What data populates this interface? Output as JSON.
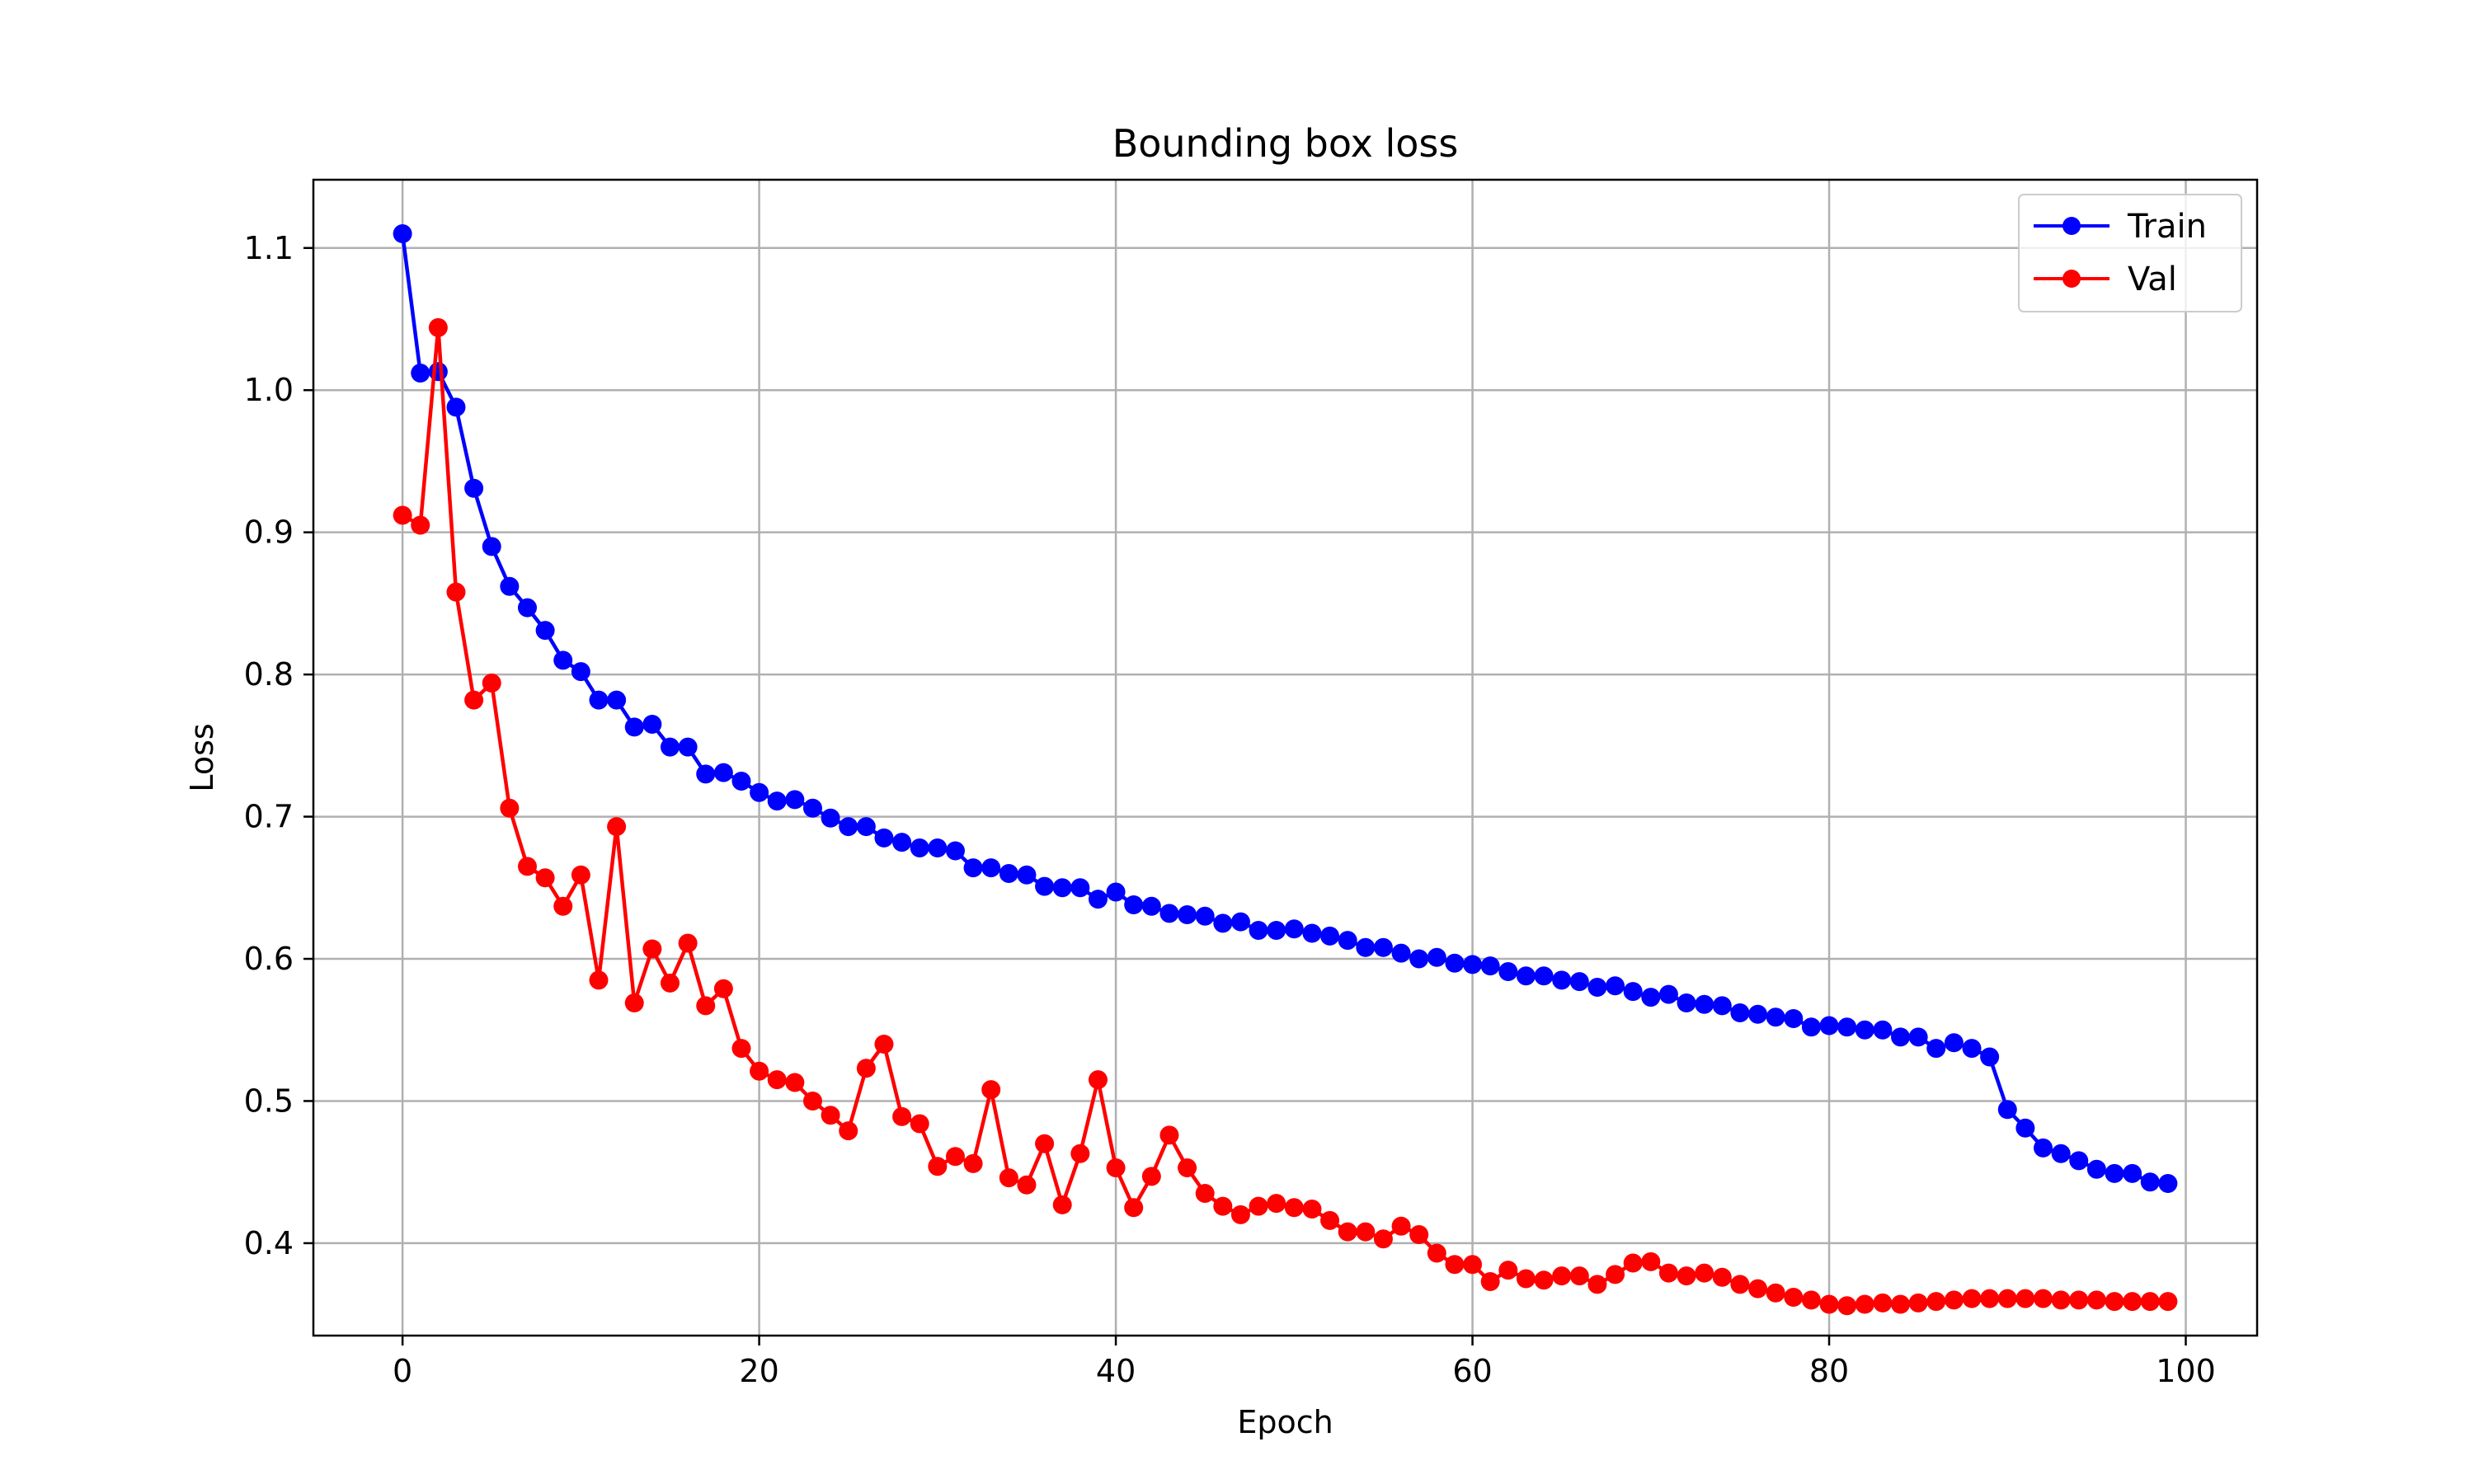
{
  "chart_data": {
    "type": "line",
    "title": "Bounding box loss",
    "xlabel": "Epoch",
    "ylabel": "Loss",
    "xlim": [
      -5,
      104
    ],
    "ylim": [
      0.335,
      1.148
    ],
    "xticks": [
      0,
      20,
      40,
      60,
      80,
      100
    ],
    "yticks": [
      0.4,
      0.5,
      0.6,
      0.7,
      0.8,
      0.9,
      1.0,
      1.1
    ],
    "xtick_labels": [
      "0",
      "20",
      "40",
      "60",
      "80",
      "100"
    ],
    "ytick_labels": [
      "0.4",
      "0.5",
      "0.6",
      "0.7",
      "0.8",
      "0.9",
      "1.0",
      "1.1"
    ],
    "grid": true,
    "legend_position": "top-right",
    "series": [
      {
        "name": "Train",
        "color": "#0000ff",
        "marker": "circle",
        "x": [
          0,
          1,
          2,
          3,
          4,
          5,
          6,
          7,
          8,
          9,
          10,
          11,
          12,
          13,
          14,
          15,
          16,
          17,
          18,
          19,
          20,
          21,
          22,
          23,
          24,
          25,
          26,
          27,
          28,
          29,
          30,
          31,
          32,
          33,
          34,
          35,
          36,
          37,
          38,
          39,
          40,
          41,
          42,
          43,
          44,
          45,
          46,
          47,
          48,
          49,
          50,
          51,
          52,
          53,
          54,
          55,
          56,
          57,
          58,
          59,
          60,
          61,
          62,
          63,
          64,
          65,
          66,
          67,
          68,
          69,
          70,
          71,
          72,
          73,
          74,
          75,
          76,
          77,
          78,
          79,
          80,
          81,
          82,
          83,
          84,
          85,
          86,
          87,
          88,
          89,
          90,
          91,
          92,
          93,
          94,
          95,
          96,
          97,
          98,
          99
        ],
        "values": [
          1.11,
          1.012,
          1.013,
          0.988,
          0.931,
          0.89,
          0.862,
          0.847,
          0.831,
          0.81,
          0.802,
          0.782,
          0.782,
          0.763,
          0.765,
          0.749,
          0.749,
          0.73,
          0.731,
          0.725,
          0.717,
          0.711,
          0.712,
          0.706,
          0.699,
          0.693,
          0.693,
          0.685,
          0.682,
          0.678,
          0.678,
          0.676,
          0.664,
          0.664,
          0.66,
          0.659,
          0.651,
          0.65,
          0.65,
          0.642,
          0.647,
          0.638,
          0.637,
          0.632,
          0.631,
          0.63,
          0.625,
          0.626,
          0.62,
          0.62,
          0.621,
          0.618,
          0.616,
          0.613,
          0.608,
          0.608,
          0.604,
          0.6,
          0.601,
          0.597,
          0.596,
          0.595,
          0.591,
          0.588,
          0.588,
          0.585,
          0.584,
          0.58,
          0.581,
          0.577,
          0.573,
          0.575,
          0.569,
          0.568,
          0.567,
          0.562,
          0.561,
          0.559,
          0.558,
          0.552,
          0.553,
          0.552,
          0.55,
          0.55,
          0.545,
          0.545,
          0.537,
          0.541,
          0.537,
          0.531,
          0.494,
          0.481,
          0.467,
          0.463,
          0.458,
          0.452,
          0.449,
          0.449,
          0.443,
          0.442
        ]
      },
      {
        "name": "Val",
        "color": "#ff0000",
        "marker": "circle",
        "x": [
          0,
          1,
          2,
          3,
          4,
          5,
          6,
          7,
          8,
          9,
          10,
          11,
          12,
          13,
          14,
          15,
          16,
          17,
          18,
          19,
          20,
          21,
          22,
          23,
          24,
          25,
          26,
          27,
          28,
          29,
          30,
          31,
          32,
          33,
          34,
          35,
          36,
          37,
          38,
          39,
          40,
          41,
          42,
          43,
          44,
          45,
          46,
          47,
          48,
          49,
          50,
          51,
          52,
          53,
          54,
          55,
          56,
          57,
          58,
          59,
          60,
          61,
          62,
          63,
          64,
          65,
          66,
          67,
          68,
          69,
          70,
          71,
          72,
          73,
          74,
          75,
          76,
          77,
          78,
          79,
          80,
          81,
          82,
          83,
          84,
          85,
          86,
          87,
          88,
          89,
          90,
          91,
          92,
          93,
          94,
          95,
          96,
          97,
          98,
          99
        ],
        "values": [
          0.912,
          0.905,
          1.044,
          0.858,
          0.782,
          0.794,
          0.706,
          0.665,
          0.657,
          0.637,
          0.659,
          0.585,
          0.693,
          0.569,
          0.607,
          0.583,
          0.611,
          0.567,
          0.579,
          0.537,
          0.521,
          0.515,
          0.513,
          0.5,
          0.49,
          0.479,
          0.523,
          0.54,
          0.489,
          0.484,
          0.454,
          0.461,
          0.456,
          0.508,
          0.446,
          0.441,
          0.47,
          0.427,
          0.463,
          0.515,
          0.453,
          0.425,
          0.447,
          0.476,
          0.453,
          0.435,
          0.426,
          0.42,
          0.426,
          0.428,
          0.425,
          0.424,
          0.416,
          0.408,
          0.408,
          0.403,
          0.412,
          0.406,
          0.393,
          0.385,
          0.385,
          0.373,
          0.381,
          0.375,
          0.374,
          0.377,
          0.377,
          0.371,
          0.378,
          0.386,
          0.387,
          0.379,
          0.377,
          0.379,
          0.376,
          0.371,
          0.368,
          0.365,
          0.362,
          0.36,
          0.357,
          0.356,
          0.357,
          0.358,
          0.357,
          0.358,
          0.359,
          0.36,
          0.361,
          0.361,
          0.361,
          0.361,
          0.361,
          0.36,
          0.36,
          0.36,
          0.359,
          0.359,
          0.359,
          0.359
        ]
      }
    ]
  }
}
